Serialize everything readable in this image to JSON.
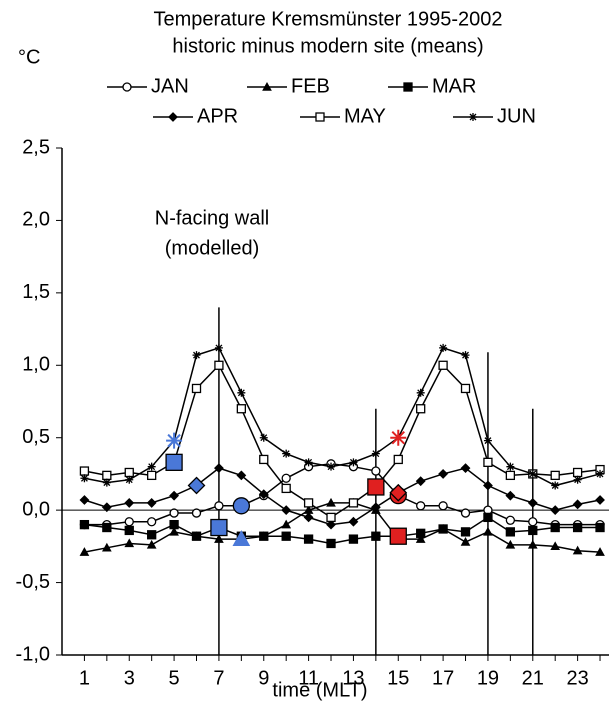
{
  "chart_data": {
    "type": "line",
    "title": [
      "Temperature Kremsmünster 1995-2002",
      "historic minus modern site (means)"
    ],
    "ylabel": "°C",
    "xlabel": "time (MLT)",
    "annotation": [
      "N-facing wall",
      "(modelled)"
    ],
    "x": [
      1,
      2,
      3,
      4,
      5,
      6,
      7,
      8,
      9,
      10,
      11,
      12,
      13,
      14,
      15,
      16,
      17,
      18,
      19,
      20,
      21,
      22,
      23,
      24
    ],
    "xlim": [
      0,
      24.4
    ],
    "xticks": [
      1,
      3,
      5,
      7,
      9,
      11,
      13,
      15,
      17,
      19,
      21,
      23
    ],
    "ylim": [
      -1.0,
      2.5
    ],
    "yticks": [
      {
        "value": -1.0,
        "label": "-1,0"
      },
      {
        "value": -0.5,
        "label": "-0,5"
      },
      {
        "value": 0.0,
        "label": "0,0"
      },
      {
        "value": 0.5,
        "label": "0,5"
      },
      {
        "value": 1.0,
        "label": "1,0"
      },
      {
        "value": 1.5,
        "label": "1,5"
      },
      {
        "value": 2.0,
        "label": "2,0"
      },
      {
        "value": 2.5,
        "label": "2,5"
      }
    ],
    "highlight_colors": [
      "#4a78d8",
      "#e02020"
    ],
    "series": [
      {
        "name": "JAN",
        "color": "#000000",
        "marker": "circle-open",
        "highlight_x": [
          8,
          15
        ],
        "values": [
          -0.1,
          -0.1,
          -0.08,
          -0.08,
          -0.02,
          -0.02,
          0.03,
          0.03,
          0.1,
          0.22,
          0.3,
          0.32,
          0.3,
          0.27,
          0.1,
          0.03,
          0.03,
          -0.02,
          0.0,
          -0.07,
          -0.08,
          -0.1,
          -0.1,
          -0.1
        ]
      },
      {
        "name": "FEB",
        "color": "#000000",
        "marker": "triangle",
        "highlight_x": [
          8
        ],
        "values": [
          -0.29,
          -0.26,
          -0.23,
          -0.24,
          -0.15,
          -0.18,
          -0.2,
          -0.2,
          -0.18,
          -0.1,
          0.0,
          0.05,
          0.05,
          0.0,
          -0.2,
          -0.2,
          -0.13,
          -0.22,
          -0.15,
          -0.24,
          -0.24,
          -0.25,
          -0.28,
          -0.29
        ]
      },
      {
        "name": "MAR",
        "color": "#000000",
        "marker": "square",
        "highlight_x": [
          7,
          15
        ],
        "values": [
          -0.1,
          -0.12,
          -0.14,
          -0.17,
          -0.1,
          -0.18,
          -0.12,
          -0.18,
          -0.18,
          -0.18,
          -0.2,
          -0.23,
          -0.2,
          -0.18,
          -0.18,
          -0.16,
          -0.13,
          -0.15,
          -0.05,
          -0.15,
          -0.14,
          -0.12,
          -0.12,
          -0.12
        ]
      },
      {
        "name": "APR",
        "color": "#000000",
        "marker": "diamond",
        "highlight_x": [
          6,
          15
        ],
        "values": [
          0.07,
          0.02,
          0.05,
          0.05,
          0.1,
          0.17,
          0.29,
          0.24,
          0.11,
          0.0,
          -0.05,
          -0.1,
          -0.08,
          0.02,
          0.12,
          0.2,
          0.25,
          0.29,
          0.17,
          0.1,
          0.05,
          0.0,
          0.04,
          0.07
        ]
      },
      {
        "name": "MAY",
        "color": "#000000",
        "marker": "square-open",
        "highlight_x": [
          5,
          14
        ],
        "values": [
          0.27,
          0.24,
          0.26,
          0.24,
          0.33,
          0.84,
          1.0,
          0.7,
          0.35,
          0.15,
          0.05,
          -0.05,
          0.05,
          0.16,
          0.35,
          0.7,
          1.0,
          0.84,
          0.33,
          0.24,
          0.25,
          0.24,
          0.26,
          0.28
        ]
      },
      {
        "name": "JUN",
        "color": "#000000",
        "marker": "star",
        "highlight_x": [
          5,
          15
        ],
        "values": [
          0.22,
          0.19,
          0.21,
          0.3,
          0.48,
          1.07,
          1.12,
          0.81,
          0.5,
          0.39,
          0.33,
          0.3,
          0.33,
          0.39,
          0.5,
          0.81,
          1.12,
          1.07,
          0.48,
          0.3,
          0.25,
          0.17,
          0.21,
          0.25
        ]
      }
    ],
    "vlines": [
      {
        "x": 7,
        "top": 1.4
      },
      {
        "x": 14,
        "top": 0.7
      },
      {
        "x": 19,
        "top": 1.09
      },
      {
        "x": 21,
        "top": 0.7
      }
    ]
  }
}
